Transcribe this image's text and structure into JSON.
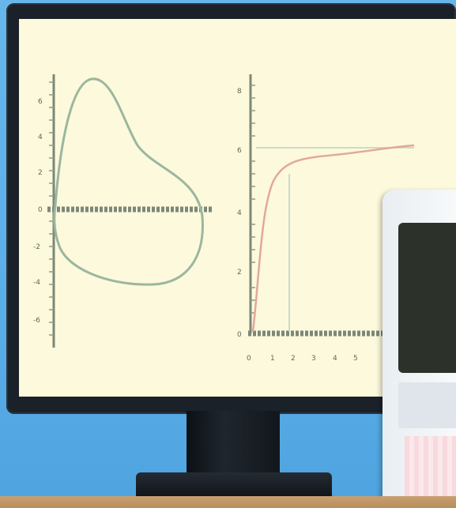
{
  "scene": {
    "description_colors": {
      "background": "#5aaee8",
      "bezel": "#1a2129",
      "screen": "#fdf9dc",
      "loop_curve": "#9bb79e",
      "response_curve": "#e2a89a",
      "axis": "#7c8877",
      "guide_line": "#b9d2c6"
    }
  },
  "left_plot": {
    "y_ticks": [
      "6",
      "4",
      "2",
      "0",
      "-2",
      "-4",
      "-6"
    ]
  },
  "right_plot": {
    "y_ticks": [
      "8",
      "6",
      "4",
      "2",
      "0"
    ],
    "x_ticks": [
      "0",
      "1",
      "2",
      "3",
      "4",
      "5"
    ]
  }
}
